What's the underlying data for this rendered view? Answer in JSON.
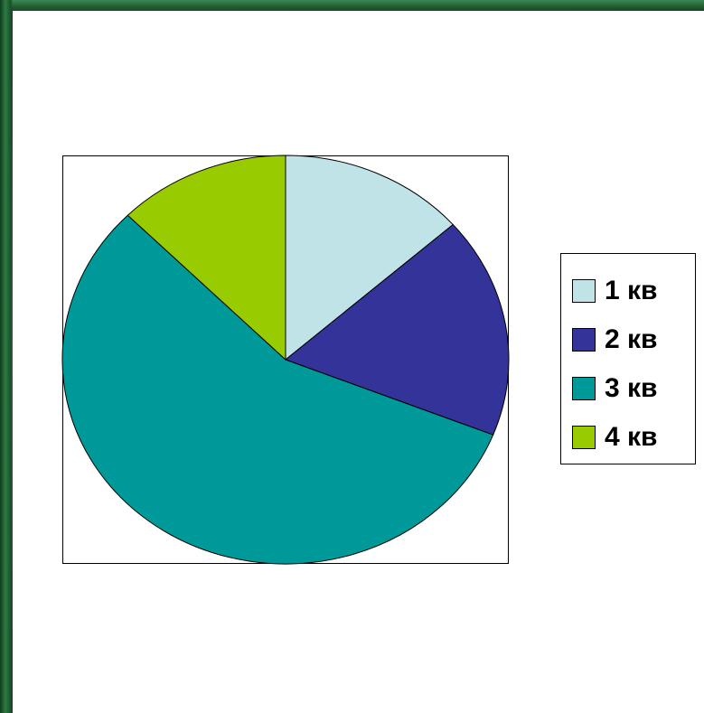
{
  "chart_data": {
    "type": "pie",
    "categories": [
      "1 кв",
      "2 кв",
      "3 кв",
      "4 кв"
    ],
    "values": [
      13.5,
      17.5,
      56.5,
      12.5
    ],
    "colors": [
      "#bfe3e6",
      "#333399",
      "#009999",
      "#99cc00"
    ],
    "start_angle": "12 o'clock",
    "direction": "clockwise",
    "legend_placement": "right"
  }
}
